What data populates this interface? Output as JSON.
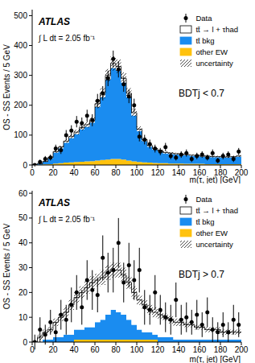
{
  "chart_data": [
    {
      "type": "histogram",
      "x_label": "m(τ, jet) [GeV]",
      "y_label": "OS - SS Events / 5 GeV",
      "annotations": [
        "ATLAS",
        "∫ L dt = 2.05 fb⁻¹",
        "BDTj < 0.7"
      ],
      "bins": [
        0,
        5,
        10,
        15,
        20,
        25,
        30,
        35,
        40,
        45,
        50,
        55,
        60,
        65,
        70,
        75,
        80,
        85,
        90,
        95,
        100,
        105,
        110,
        115,
        120,
        125,
        130,
        135,
        140,
        145,
        150,
        155,
        160,
        165,
        170,
        175,
        180,
        185,
        190,
        195,
        200
      ],
      "series": [
        {
          "name": "Data",
          "type": "scatter",
          "color": "#000000",
          "marker": "circle",
          "values": [
            0,
            10,
            20,
            25,
            55,
            50,
            100,
            115,
            145,
            140,
            165,
            150,
            215,
            240,
            290,
            355,
            320,
            270,
            230,
            200,
            95,
            85,
            70,
            55,
            45,
            60,
            30,
            25,
            35,
            40,
            20,
            30,
            35,
            25,
            40,
            15,
            30,
            35,
            20,
            45
          ],
          "errors": [
            5,
            8,
            10,
            10,
            13,
            13,
            17,
            18,
            19,
            19,
            20,
            20,
            23,
            24,
            26,
            28,
            27,
            25,
            23,
            22,
            16,
            16,
            15,
            13,
            12,
            14,
            11,
            10,
            11,
            12,
            10,
            11,
            11,
            10,
            12,
            9,
            11,
            11,
            10,
            12
          ]
        },
        {
          "name": "tt̄ → l + τhad",
          "type": "bar",
          "color": "#ffffff",
          "values": [
            0,
            0,
            1,
            2,
            3,
            4,
            5,
            5,
            6,
            6,
            7,
            8,
            10,
            12,
            14,
            15,
            15,
            14,
            12,
            9,
            7,
            5,
            4,
            4,
            3,
            3,
            3,
            3,
            3,
            2,
            2,
            2,
            2,
            2,
            2,
            2,
            2,
            2,
            2,
            2
          ]
        },
        {
          "name": "tt̄ bkg",
          "type": "bar",
          "color": "#1a8cf0",
          "values": [
            2,
            4,
            9,
            20,
            37,
            50,
            67,
            81,
            94,
            108,
            116,
            129,
            180,
            211,
            268,
            305,
            295,
            258,
            213,
            154,
            103,
            71,
            53,
            44,
            39,
            33,
            32,
            30,
            28,
            29,
            27,
            26,
            24,
            25,
            23,
            23,
            22,
            22,
            23,
            25
          ]
        },
        {
          "name": "other EW",
          "type": "bar",
          "color": "#ffc20e",
          "values": [
            0,
            1,
            2,
            3,
            5,
            6,
            8,
            9,
            10,
            11,
            12,
            13,
            15,
            17,
            18,
            20,
            20,
            18,
            15,
            12,
            10,
            9,
            8,
            7,
            6,
            6,
            5,
            5,
            5,
            4,
            4,
            4,
            4,
            3,
            3,
            3,
            3,
            3,
            3,
            3
          ]
        },
        {
          "name": "uncertainty",
          "type": "band",
          "color": "#000000",
          "values": [
            1,
            2,
            2,
            3,
            4,
            5,
            6,
            7,
            8,
            9,
            10,
            11,
            15,
            17,
            21,
            24,
            23,
            20,
            17,
            13,
            9,
            7,
            5,
            4,
            4,
            4,
            3,
            3,
            3,
            3,
            3,
            3,
            3,
            3,
            3,
            3,
            3,
            3,
            3,
            3
          ]
        }
      ],
      "xlim": [
        0,
        200
      ],
      "xticks": [
        0,
        20,
        40,
        60,
        80,
        100,
        120,
        140,
        160,
        180,
        200
      ],
      "ylim": [
        0,
        520
      ],
      "yticks": [
        0,
        100,
        200,
        300,
        400,
        500
      ],
      "stacked": true,
      "legend": "upper right"
    },
    {
      "type": "histogram",
      "x_label": "m(τ, jet) [GeV]",
      "y_label": "OS - SS Events / 5 GeV",
      "annotations": [
        "ATLAS",
        "∫ L dt = 2.05 fb⁻¹",
        "BDTj > 0.7"
      ],
      "bins": [
        0,
        5,
        10,
        15,
        20,
        25,
        30,
        35,
        40,
        45,
        50,
        55,
        60,
        65,
        70,
        75,
        80,
        85,
        90,
        95,
        100,
        105,
        110,
        115,
        120,
        125,
        130,
        135,
        140,
        145,
        150,
        155,
        160,
        165,
        170,
        175,
        180,
        185,
        190,
        195,
        200
      ],
      "series": [
        {
          "name": "Data",
          "type": "scatter",
          "color": "#000000",
          "marker": "circle",
          "values": [
            0,
            5,
            3,
            8,
            4,
            11,
            9,
            15,
            20,
            14,
            25,
            21,
            19,
            34,
            28,
            29,
            40,
            24,
            31,
            25,
            29,
            14,
            13,
            20,
            13,
            10,
            9,
            17,
            9,
            10,
            8,
            11,
            7,
            12,
            5,
            4,
            7,
            4,
            9,
            7
          ],
          "errors": [
            3,
            5,
            4,
            5,
            4,
            6,
            6,
            7,
            7,
            7,
            8,
            8,
            7,
            9,
            8,
            9,
            10,
            8,
            9,
            8,
            9,
            7,
            6,
            7,
            6,
            6,
            6,
            7,
            6,
            6,
            5,
            6,
            5,
            6,
            5,
            4,
            5,
            4,
            6,
            5
          ]
        },
        {
          "name": "tt̄ → l + τhad",
          "type": "bar",
          "color": "#ffffff",
          "values": [
            0,
            2,
            3,
            4,
            6,
            8,
            9,
            12,
            13,
            15,
            16,
            18,
            17,
            17,
            17,
            16,
            17,
            16,
            15,
            13,
            12,
            11,
            9,
            9,
            9,
            8,
            7,
            7,
            7,
            6,
            6,
            5,
            5,
            4,
            4,
            4,
            3,
            3,
            3,
            3
          ]
        },
        {
          "name": "tt̄ bkg",
          "type": "bar",
          "color": "#1a8cf0",
          "values": [
            0,
            0,
            1,
            1,
            2,
            2,
            3,
            3,
            4,
            4,
            5,
            5,
            7,
            8,
            10,
            12,
            11,
            10,
            8,
            6,
            4,
            3,
            3,
            2,
            2,
            2,
            2,
            1,
            1,
            1,
            1,
            1,
            1,
            1,
            1,
            1,
            1,
            1,
            1,
            1
          ]
        },
        {
          "name": "other EW",
          "type": "bar",
          "color": "#ffc20e",
          "values": [
            0,
            0,
            0,
            0,
            0,
            0,
            0,
            0,
            1,
            1,
            1,
            1,
            1,
            1,
            1,
            1,
            1,
            1,
            1,
            1,
            1,
            1,
            1,
            1,
            0,
            0,
            0,
            0,
            0,
            0,
            0,
            0,
            0,
            0,
            0,
            0,
            0,
            0,
            0,
            0
          ]
        },
        {
          "name": "uncertainty",
          "type": "band",
          "color": "#000000",
          "values": [
            0.5,
            1,
            1,
            1,
            1.5,
            1.5,
            2,
            2,
            2,
            2.5,
            2.5,
            2.5,
            2.5,
            3,
            3,
            3,
            3,
            3,
            2.5,
            2.5,
            2,
            2,
            2,
            2,
            1.5,
            1.5,
            1.5,
            1.5,
            1.5,
            1,
            1,
            1,
            1,
            1,
            1,
            1,
            1,
            1,
            1,
            1
          ]
        }
      ],
      "xlim": [
        0,
        200
      ],
      "xticks": [
        0,
        20,
        40,
        60,
        80,
        100,
        120,
        140,
        160,
        180,
        200
      ],
      "ylim": [
        0,
        61
      ],
      "yticks": [
        0,
        10,
        20,
        30,
        40,
        50,
        60
      ],
      "stacked": true,
      "legend": "upper right"
    }
  ]
}
